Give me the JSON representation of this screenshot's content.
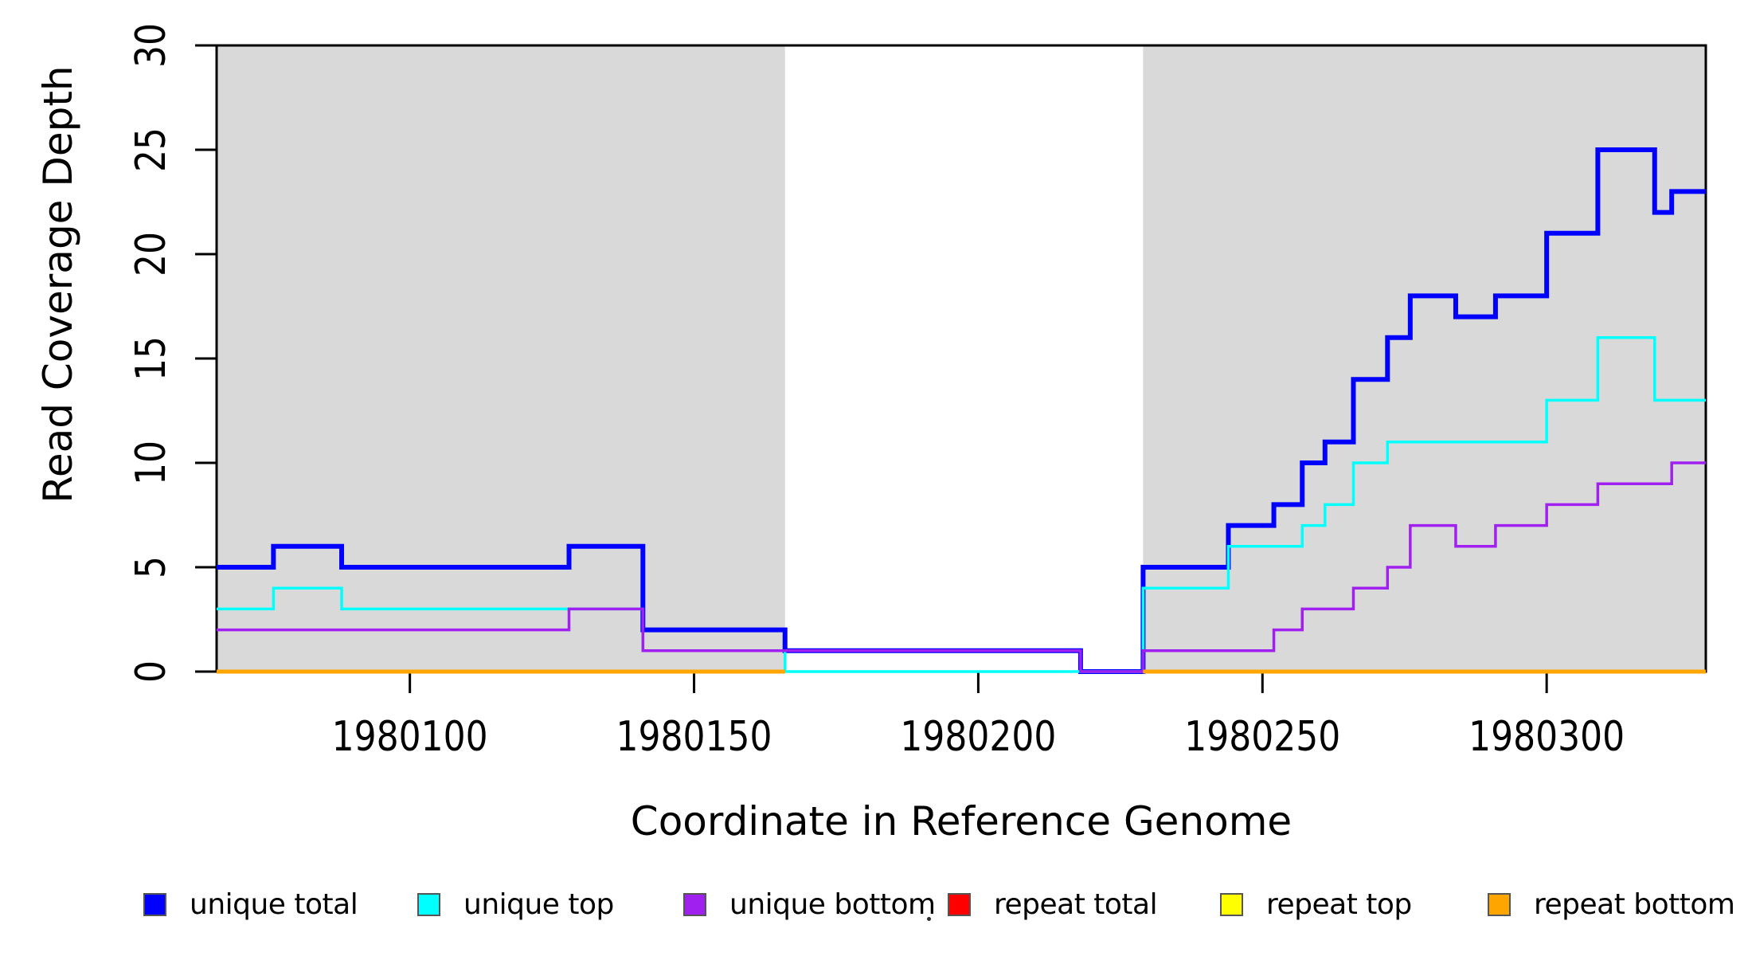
{
  "chart_data": {
    "type": "line",
    "subtype": "step",
    "title": "",
    "xlabel": "Coordinate in Reference Genome",
    "ylabel": "Read Coverage Depth",
    "x_range": [
      1980066,
      1980328
    ],
    "y_range": [
      0,
      30
    ],
    "x_ticks": [
      1980100,
      1980150,
      1980200,
      1980250,
      1980300
    ],
    "y_ticks": [
      0,
      5,
      10,
      15,
      20,
      25,
      30
    ],
    "grid": false,
    "colors": {
      "repeat_region_fill": "#D9D9D9",
      "axis": "#000000",
      "background": "#FFFFFF"
    },
    "repeat_regions": [
      [
        1980066,
        1980166
      ],
      [
        1980229,
        1980328
      ]
    ],
    "series": [
      {
        "name": "unique total",
        "color": "#0000FF",
        "lwd": 6,
        "parts": [
          {
            "points": [
              [
                1980066,
                5
              ],
              [
                1980076,
                6
              ],
              [
                1980088,
                5
              ],
              [
                1980128,
                6
              ],
              [
                1980141,
                2
              ],
              [
                1980166,
                1
              ],
              [
                1980218,
                0
              ],
              [
                1980229,
                5
              ],
              [
                1980244,
                7
              ],
              [
                1980252,
                8
              ],
              [
                1980257,
                10
              ],
              [
                1980261,
                11
              ],
              [
                1980266,
                14
              ],
              [
                1980272,
                16
              ],
              [
                1980276,
                18
              ],
              [
                1980284,
                17
              ],
              [
                1980291,
                18
              ],
              [
                1980300,
                21
              ],
              [
                1980309,
                25
              ],
              [
                1980319,
                22
              ],
              [
                1980322,
                23
              ]
            ],
            "end": 1980328
          }
        ]
      },
      {
        "name": "unique top",
        "color": "#00FFFF",
        "lwd": 3.5,
        "parts": [
          {
            "points": [
              [
                1980066,
                3
              ],
              [
                1980076,
                4
              ],
              [
                1980088,
                3
              ],
              [
                1980141,
                1
              ],
              [
                1980166,
                0
              ],
              [
                1980229,
                4
              ],
              [
                1980244,
                6
              ],
              [
                1980257,
                7
              ],
              [
                1980261,
                8
              ],
              [
                1980266,
                10
              ],
              [
                1980272,
                11
              ],
              [
                1980300,
                13
              ],
              [
                1980309,
                16
              ],
              [
                1980319,
                13
              ]
            ],
            "end": 1980328
          }
        ]
      },
      {
        "name": "unique bottom",
        "color": "#A020F0",
        "lwd": 3.5,
        "parts": [
          {
            "points": [
              [
                1980066,
                2
              ],
              [
                1980128,
                3
              ],
              [
                1980141,
                1
              ],
              [
                1980218,
                0
              ],
              [
                1980229,
                1
              ],
              [
                1980252,
                2
              ],
              [
                1980257,
                3
              ],
              [
                1980266,
                4
              ],
              [
                1980272,
                5
              ],
              [
                1980276,
                7
              ],
              [
                1980284,
                6
              ],
              [
                1980291,
                7
              ],
              [
                1980300,
                8
              ],
              [
                1980309,
                9
              ],
              [
                1980322,
                10
              ]
            ],
            "end": 1980328
          }
        ]
      },
      {
        "name": "repeat total",
        "color": "#FF0000",
        "lwd": 3,
        "parts": [
          {
            "points": [
              [
                1980066,
                0
              ]
            ],
            "end": 1980166
          },
          {
            "points": [
              [
                1980229,
                0
              ]
            ],
            "end": 1980328
          }
        ]
      },
      {
        "name": "repeat top",
        "color": "#FFFF00",
        "lwd": 3,
        "parts": [
          {
            "points": [
              [
                1980066,
                0
              ]
            ],
            "end": 1980166
          },
          {
            "points": [
              [
                1980229,
                0
              ]
            ],
            "end": 1980328
          }
        ]
      },
      {
        "name": "repeat bottom",
        "color": "#FFA500",
        "lwd": 5,
        "parts": [
          {
            "points": [
              [
                1980066,
                0
              ]
            ],
            "end": 1980166
          },
          {
            "points": [
              [
                1980229,
                0
              ]
            ],
            "end": 1980328
          }
        ]
      }
    ],
    "legend": [
      {
        "label": "unique total",
        "color": "#0000FF"
      },
      {
        "label": "unique top",
        "color": "#00FFFF"
      },
      {
        "label": "unique bottom",
        "color": "#A020F0"
      },
      {
        "label": "repeat total",
        "color": "#FF0000"
      },
      {
        "label": "repeat top",
        "color": "#FFFF00"
      },
      {
        "label": "repeat bottom",
        "color": "#FFA500"
      }
    ],
    "legend_position": "bottom"
  }
}
